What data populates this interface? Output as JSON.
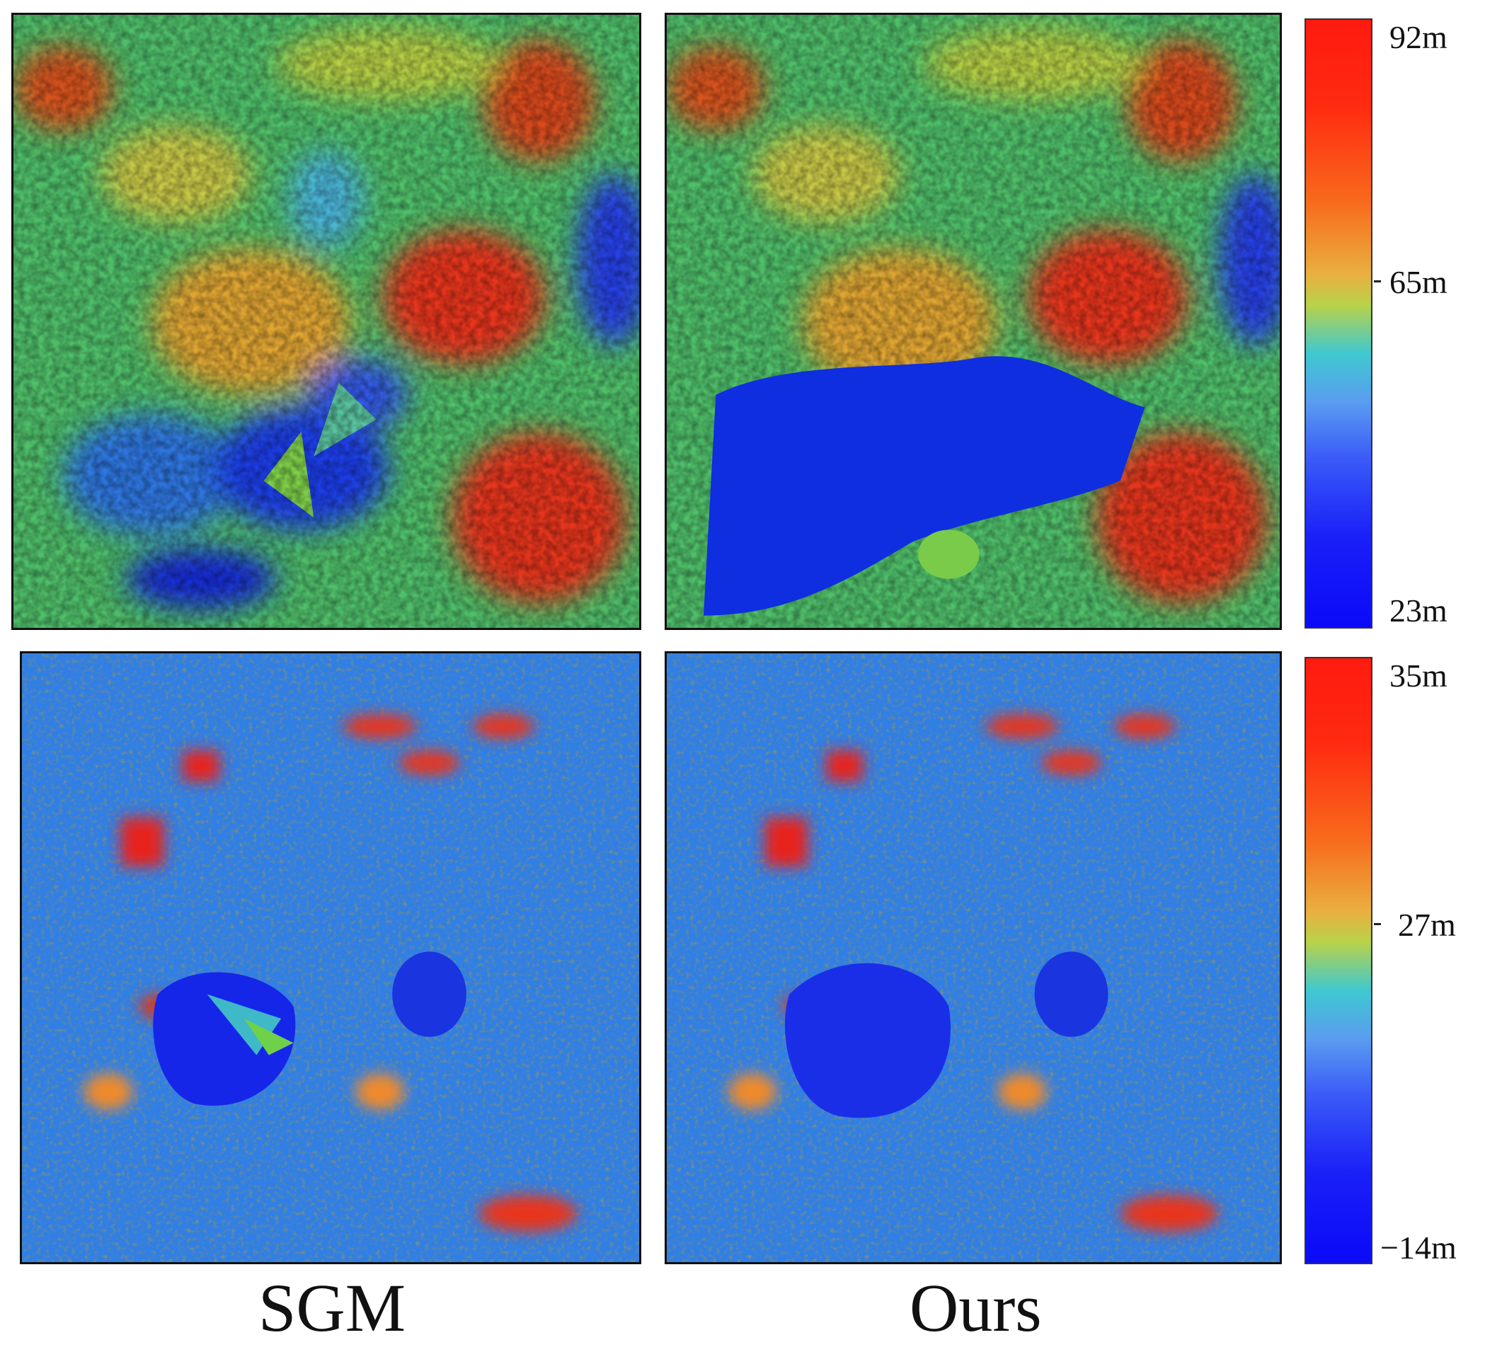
{
  "captions": {
    "left": "SGM",
    "right": "Ours"
  },
  "colorbar_top": {
    "max": "92m",
    "mid": "65m",
    "min": "23m"
  },
  "colorbar_bottom": {
    "max": "35m",
    "mid": "27m",
    "min": "−14m"
  },
  "colormap": [
    "#0a0af8",
    "#3b5cf8",
    "#3fc8d0",
    "#b8d24a",
    "#e9b040",
    "#f86a1c",
    "#ff1a10"
  ]
}
